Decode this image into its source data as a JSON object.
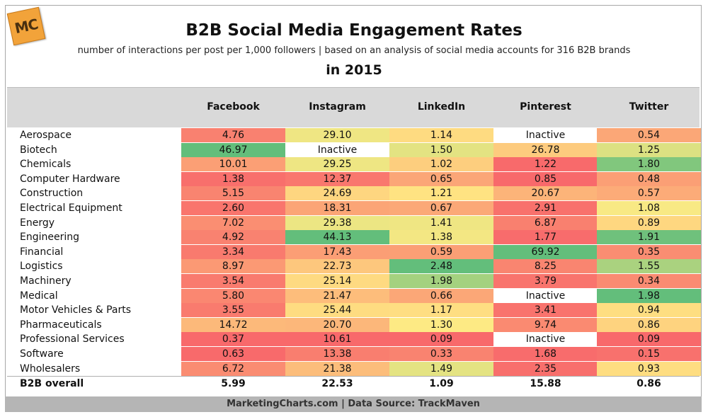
{
  "logo_text": "MC",
  "chart_data": {
    "type": "table",
    "title": "B2B Social Media Engagement Rates",
    "subtitle": "number of interactions per post per 1,000 followers | based on an analysis of social media accounts for 316 B2B brands",
    "year_label": "in 2015",
    "columns": [
      "Facebook",
      "Instagram",
      "LinkedIn",
      "Pinterest",
      "Twitter"
    ],
    "rows": [
      {
        "label": "Aerospace",
        "values": [
          "4.76",
          "29.10",
          "1.14",
          "Inactive",
          "0.54"
        ]
      },
      {
        "label": "Biotech",
        "values": [
          "46.97",
          "Inactive",
          "1.50",
          "26.78",
          "1.25"
        ]
      },
      {
        "label": "Chemicals",
        "values": [
          "10.01",
          "29.25",
          "1.02",
          "1.22",
          "1.80"
        ]
      },
      {
        "label": "Computer Hardware",
        "values": [
          "1.38",
          "12.37",
          "0.65",
          "0.85",
          "0.48"
        ]
      },
      {
        "label": "Construction",
        "values": [
          "5.15",
          "24.69",
          "1.21",
          "20.67",
          "0.57"
        ]
      },
      {
        "label": "Electrical Equipment",
        "values": [
          "2.60",
          "18.31",
          "0.67",
          "2.91",
          "1.08"
        ]
      },
      {
        "label": "Energy",
        "values": [
          "7.02",
          "29.38",
          "1.41",
          "6.87",
          "0.89"
        ]
      },
      {
        "label": "Engineering",
        "values": [
          "4.92",
          "44.13",
          "1.38",
          "1.77",
          "1.91"
        ]
      },
      {
        "label": "Financial",
        "values": [
          "3.34",
          "17.43",
          "0.59",
          "69.92",
          "0.35"
        ]
      },
      {
        "label": "Logistics",
        "values": [
          "8.97",
          "22.73",
          "2.48",
          "8.25",
          "1.55"
        ]
      },
      {
        "label": "Machinery",
        "values": [
          "3.54",
          "25.14",
          "1.98",
          "3.79",
          "0.34"
        ]
      },
      {
        "label": "Medical",
        "values": [
          "5.80",
          "21.47",
          "0.66",
          "Inactive",
          "1.98"
        ]
      },
      {
        "label": "Motor Vehicles & Parts",
        "values": [
          "3.55",
          "25.44",
          "1.17",
          "3.41",
          "0.94"
        ]
      },
      {
        "label": "Pharmaceuticals",
        "values": [
          "14.72",
          "20.70",
          "1.30",
          "9.74",
          "0.86"
        ]
      },
      {
        "label": "Professional Services",
        "values": [
          "0.37",
          "10.61",
          "0.09",
          "Inactive",
          "0.09"
        ]
      },
      {
        "label": "Software",
        "values": [
          "0.63",
          "13.38",
          "0.33",
          "1.68",
          "0.15"
        ]
      },
      {
        "label": "Wholesalers",
        "values": [
          "6.72",
          "21.38",
          "1.49",
          "2.35",
          "0.93"
        ]
      }
    ],
    "overall": {
      "label": "B2B overall",
      "values": [
        "5.99",
        "22.53",
        "1.09",
        "15.88",
        "0.86"
      ]
    },
    "inactive_color": "#ffffff"
  },
  "footer": {
    "text": "MarketingCharts.com | Data Source: TrackMaven"
  }
}
